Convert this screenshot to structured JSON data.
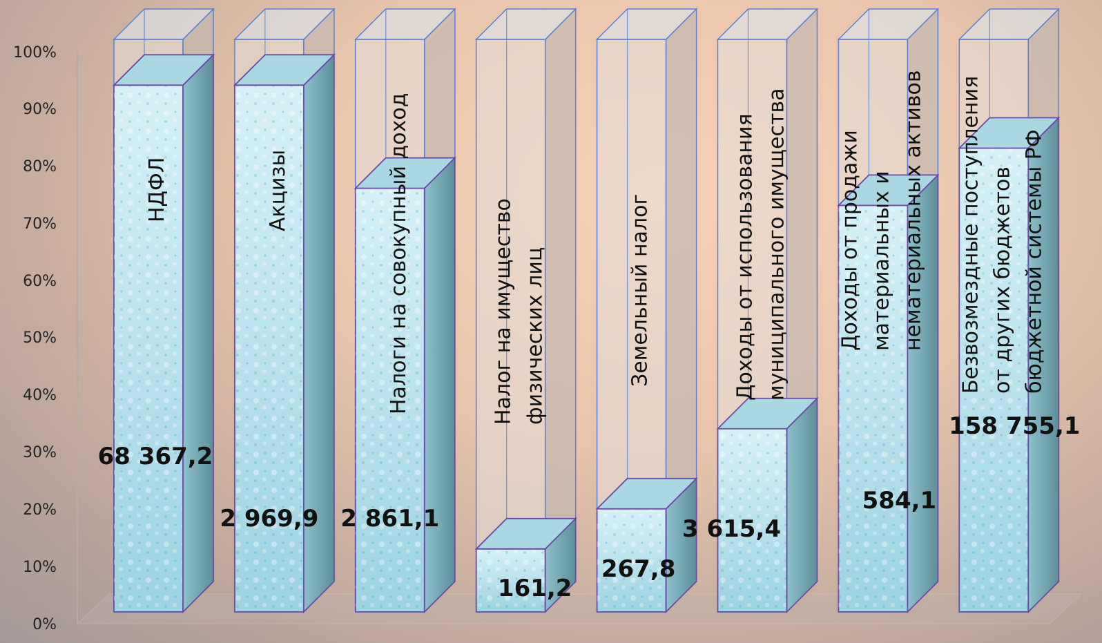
{
  "chart_data": {
    "type": "bar",
    "stacked_percent": true,
    "ylim": [
      0,
      100
    ],
    "y_ticks": [
      "0%",
      "10%",
      "20%",
      "30%",
      "40%",
      "50%",
      "60%",
      "70%",
      "80%",
      "90%",
      "100%"
    ],
    "categories": [
      [
        "НДФЛ"
      ],
      [
        "Акцизы"
      ],
      [
        "Налоги на совокупный доход"
      ],
      [
        "Налог  на имущество",
        "физических лиц"
      ],
      [
        "Земельный налог"
      ],
      [
        "Доходы от использования",
        "муниципального имущества"
      ],
      [
        "Доходы от продажи",
        "материальных и",
        "нематериальных активов"
      ],
      [
        "Безвозмездные поступления",
        "от других бюджетов",
        "бюджетной системы РФ"
      ]
    ],
    "values_percent": [
      92,
      92,
      74,
      11,
      18,
      32,
      71,
      81
    ],
    "value_labels": [
      "68 367,2",
      "2 969,9",
      "2 861,1",
      "161,2",
      "267,8",
      "3 615,4",
      "584,1",
      "158 755,1"
    ],
    "colors": {
      "fill_top": "#d6f1f7",
      "fill_bottom": "#9dd3e2",
      "side": "#7fb2bd",
      "edge": "#5b7fd6",
      "outline": "#6a4aa8"
    }
  }
}
